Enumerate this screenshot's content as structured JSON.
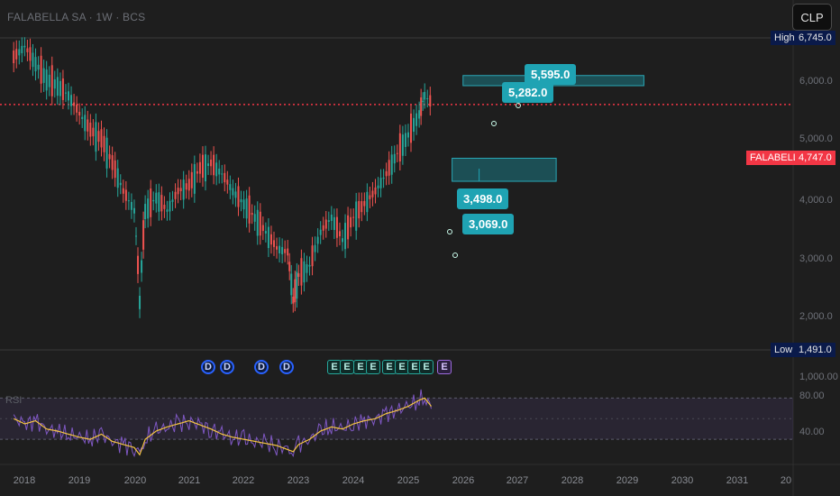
{
  "header": {
    "title": "FALABELLA SA · 1W · BCS",
    "currency_button": "CLP"
  },
  "price_tags": {
    "high_label": "High",
    "high_value": "6,745.0",
    "low_label": "Low",
    "low_value": "1,491.0",
    "ticker_label": "FALABELLA",
    "last_value": "4,747.0"
  },
  "y_axis_labels": [
    "6,000.0",
    "5,000.0",
    "4,000.0",
    "3,000.0",
    "2,000.0",
    "1,000.00"
  ],
  "x_axis_labels": [
    "2018",
    "2019",
    "2020",
    "2021",
    "2022",
    "2023",
    "2024",
    "2025",
    "2026",
    "2027",
    "2028",
    "2029",
    "2030",
    "2031",
    "20"
  ],
  "rsi": {
    "label": "RSI",
    "levels": [
      "80.00",
      "40.00"
    ]
  },
  "event_badges": [
    "D",
    "D",
    "D",
    "D",
    "E",
    "E",
    "E",
    "E",
    "E",
    "E",
    "E",
    "E",
    "E"
  ],
  "colors": {
    "up": "#26a69a",
    "down": "#ef5350",
    "rsi_line": "#7e57c2",
    "rsi_ma": "#f5c542",
    "zone": "#1b6f7a",
    "callout": "#1fa3b3",
    "last_price": "#f23645"
  },
  "chart_data": {
    "type": "line",
    "title": "FALABELLA SA · 1W · BCS",
    "xlabel": "",
    "ylabel": "",
    "x": [
      2017.8,
      2018.0,
      2018.2,
      2018.4,
      2018.6,
      2018.8,
      2019.0,
      2019.2,
      2019.4,
      2019.6,
      2019.8,
      2020.0,
      2020.1,
      2020.2,
      2020.4,
      2020.6,
      2020.8,
      2021.0,
      2021.2,
      2021.4,
      2021.6,
      2021.8,
      2022.0,
      2022.2,
      2022.4,
      2022.6,
      2022.8,
      2022.9,
      2023.0,
      2023.2,
      2023.4,
      2023.6,
      2023.8,
      2024.0,
      2024.2,
      2024.4,
      2024.6,
      2024.8,
      2025.0,
      2025.2,
      2025.3,
      2025.45
    ],
    "series": [
      {
        "values": [
          6200,
          6600,
          6000,
          5500,
          5300,
          5000,
          4500,
          4100,
          3900,
          3400,
          2900,
          2600,
          1550,
          2600,
          2800,
          2600,
          2900,
          3000,
          3300,
          3400,
          3200,
          2900,
          2700,
          2500,
          2300,
          2100,
          2050,
          1560,
          1800,
          1900,
          2300,
          2500,
          2200,
          2500,
          2700,
          2900,
          3200,
          3600,
          4000,
          4500,
          5000,
          4747
        ]
      }
    ],
    "ylim": [
      1000,
      7000
    ],
    "y_scale": "log",
    "xlim": [
      2017.8,
      2032.0
    ],
    "high": 6745.0,
    "low": 1491.0,
    "last": 4747.0,
    "annotations": [
      {
        "label": "5,595.0",
        "value": 5595.0
      },
      {
        "label": "5,282.0",
        "value": 5282.0
      },
      {
        "label": "3,498.0",
        "value": 3498.0
      },
      {
        "label": "3,069.0",
        "value": 3069.0
      }
    ],
    "zones": [
      {
        "from": 5282.0,
        "to": 5595.0
      },
      {
        "from": 3069.0,
        "to": 3498.0
      }
    ],
    "rsi_values": [
      60,
      55,
      58,
      50,
      48,
      45,
      42,
      40,
      45,
      38,
      35,
      32,
      25,
      40,
      48,
      52,
      55,
      58,
      54,
      50,
      45,
      42,
      40,
      38,
      36,
      34,
      30,
      28,
      35,
      40,
      48,
      52,
      50,
      55,
      58,
      60,
      65,
      68,
      72,
      78,
      80,
      70
    ],
    "rsi_ylim": [
      20,
      90
    ],
    "grid": false,
    "legend": "none"
  }
}
